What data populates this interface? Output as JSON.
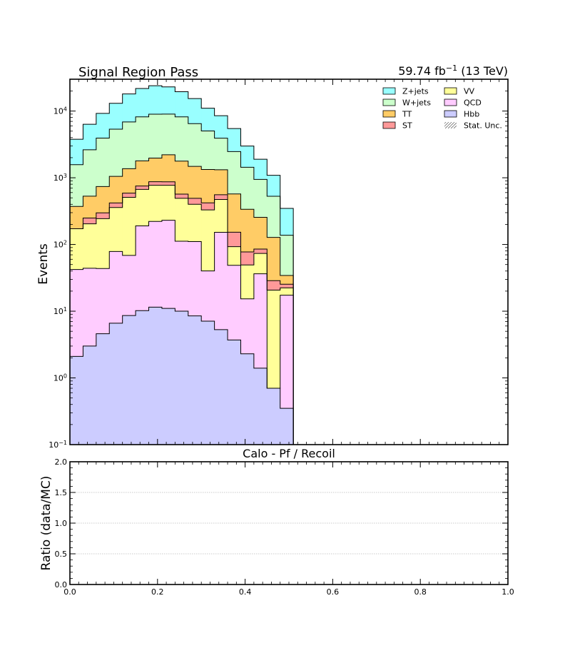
{
  "chart_data": [
    {
      "type": "area",
      "title": "Signal Region Pass",
      "lumi_label": "59.74 fb",
      "lumi_exponent": "−1",
      "energy_label": " (13 TeV)",
      "xlabel": "Calo - Pf / Recoil",
      "ylabel": "Events",
      "stacked": true,
      "yscale": "log",
      "xlim": [
        0.0,
        1.0
      ],
      "ylim": [
        0.1,
        30000
      ],
      "y_ticks": [
        {
          "value": 0.1,
          "base": "10",
          "exp": "−1"
        },
        {
          "value": 1,
          "base": "10",
          "exp": "0"
        },
        {
          "value": 10,
          "base": "10",
          "exp": "1"
        },
        {
          "value": 100,
          "base": "10",
          "exp": "2"
        },
        {
          "value": 1000,
          "base": "10",
          "exp": "3"
        },
        {
          "value": 10000,
          "base": "10",
          "exp": "4"
        }
      ],
      "bin_edges": [
        0.0,
        0.03,
        0.06,
        0.09,
        0.12,
        0.15,
        0.18,
        0.21,
        0.24,
        0.27,
        0.3,
        0.33,
        0.36,
        0.39,
        0.42,
        0.45,
        0.48,
        0.51
      ],
      "legend_position": "top-right",
      "legend_order": [
        "Z+jets",
        "VV",
        "W+jets",
        "QCD",
        "TT",
        "Hbb",
        "ST",
        "Stat. Unc."
      ],
      "legend_hatch_label": "Stat. Unc.",
      "series": [
        {
          "name": "Hbb",
          "color": "#ccccff",
          "values": [
            2.1,
            3.0,
            4.6,
            6.6,
            8.6,
            10.2,
            11.5,
            11.0,
            10.0,
            8.5,
            7.1,
            5.3,
            3.7,
            2.3,
            1.4,
            0.7,
            0.35
          ]
        },
        {
          "name": "QCD",
          "color": "#ffccff",
          "values": [
            40,
            41,
            39,
            72,
            60,
            180,
            210,
            220,
            102,
            102,
            33,
            147,
            45,
            13,
            35,
            0,
            17
          ]
        },
        {
          "name": "VV",
          "color": "#ffff99",
          "values": [
            130,
            160,
            200,
            280,
            440,
            480,
            550,
            540,
            380,
            290,
            290,
            320,
            44,
            34,
            37,
            20,
            5
          ]
        },
        {
          "name": "ST",
          "color": "#ff9999",
          "values": [
            0,
            45,
            54,
            60,
            79,
            82,
            100,
            98,
            77,
            91,
            90,
            85,
            60,
            28,
            12,
            8,
            3
          ]
        },
        {
          "name": "TT",
          "color": "#ffcc66",
          "values": [
            200,
            280,
            440,
            630,
            780,
            1040,
            1100,
            1340,
            1210,
            990,
            910,
            760,
            420,
            260,
            170,
            99,
            9
          ]
        },
        {
          "name": "W+jets",
          "color": "#ccffcc",
          "values": [
            1200,
            2100,
            3200,
            4300,
            5500,
            6400,
            7000,
            6800,
            6400,
            5000,
            3700,
            2600,
            1900,
            1100,
            690,
            400,
            103
          ]
        },
        {
          "name": "Z+jets",
          "color": "#99ffff",
          "values": [
            2200,
            3700,
            5300,
            7700,
            11200,
            13600,
            15000,
            14000,
            11300,
            8900,
            6000,
            4600,
            3000,
            1550,
            950,
            560,
            210
          ]
        }
      ]
    },
    {
      "type": "line",
      "ylabel": "Ratio (data/MC)",
      "xlim": [
        0.0,
        1.0
      ],
      "ylim": [
        0.0,
        2.0
      ],
      "grid_lines": [
        0.5,
        1.0,
        1.5
      ],
      "x_ticks": [
        "0.0",
        "0.2",
        "0.4",
        "0.6",
        "0.8",
        "1.0"
      ],
      "y_ticks": [
        "0.0",
        "0.5",
        "1.0",
        "1.5",
        "2.0"
      ]
    }
  ]
}
